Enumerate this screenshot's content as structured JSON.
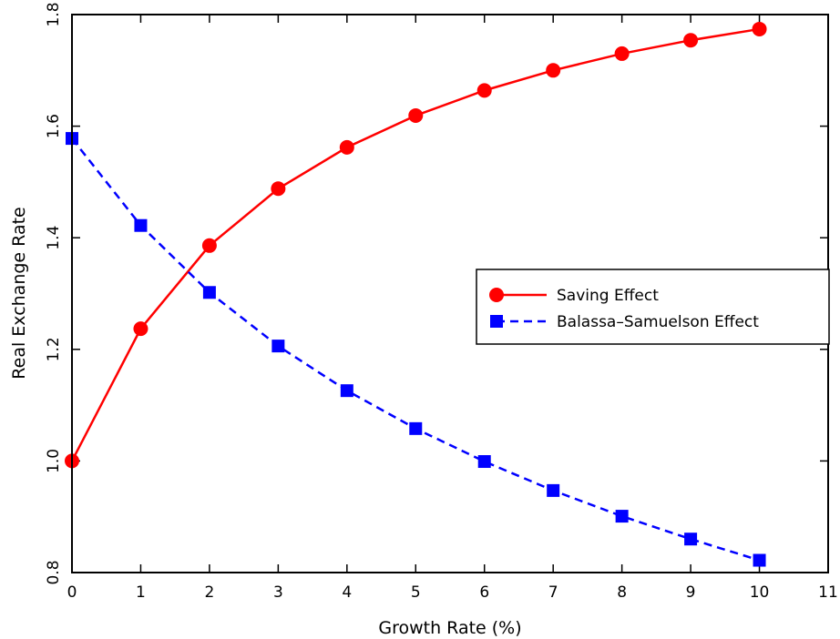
{
  "chart_data": {
    "type": "line",
    "xlabel": "Growth Rate (%)",
    "ylabel": "Real Exchange Rate",
    "xlim": [
      0,
      11
    ],
    "ylim": [
      0.8,
      1.8
    ],
    "x_ticks": [
      0,
      1,
      2,
      3,
      4,
      5,
      6,
      7,
      8,
      9,
      10,
      11
    ],
    "y_ticks": [
      0.8,
      1.0,
      1.2,
      1.4,
      1.6,
      1.8
    ],
    "x_tick_labels": [
      "0",
      "1",
      "2",
      "3",
      "4",
      "5",
      "6",
      "7",
      "8",
      "9",
      "10",
      "11"
    ],
    "y_tick_labels": [
      "0.8",
      "1.0",
      "1.2",
      "1.4",
      "1.6",
      "1.8"
    ],
    "grid": false,
    "legend_position": "right",
    "x": [
      0,
      1,
      2,
      3,
      4,
      5,
      6,
      7,
      8,
      9,
      10
    ],
    "series": [
      {
        "name": "Saving Effect",
        "color": "#ff0000",
        "line_style": "solid",
        "marker": "circle",
        "values": [
          1.0,
          1.237,
          1.386,
          1.488,
          1.562,
          1.619,
          1.664,
          1.7,
          1.73,
          1.754,
          1.774
        ]
      },
      {
        "name": "Balassa–Samuelson Effect",
        "color": "#0000ff",
        "line_style": "dashed",
        "marker": "square",
        "values": [
          1.578,
          1.422,
          1.302,
          1.206,
          1.126,
          1.058,
          0.999,
          0.947,
          0.901,
          0.86,
          0.822
        ]
      }
    ]
  }
}
